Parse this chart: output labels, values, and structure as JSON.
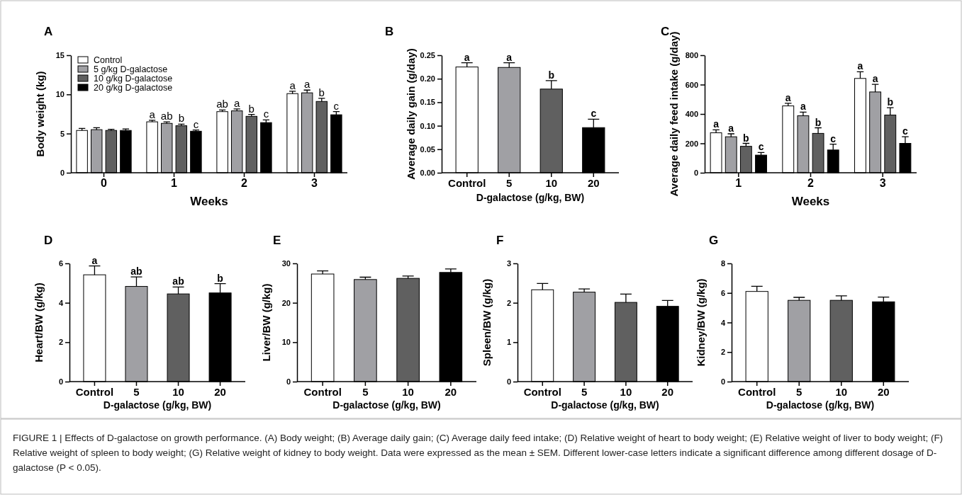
{
  "chart_data": [
    {
      "type": "bar",
      "title": "A",
      "xlabel": "Weeks",
      "ylabel": "Body weight (kg)",
      "categories": [
        "0",
        "1",
        "2",
        "3"
      ],
      "ylim": [
        0,
        15
      ],
      "yticks": [
        0,
        5,
        10,
        15
      ],
      "legend": "top left",
      "series": [
        {
          "name": "Control",
          "color": "#ffffff",
          "values": [
            5.4,
            6.5,
            7.8,
            10.1
          ],
          "errors": [
            0.25,
            0.2,
            0.2,
            0.3
          ],
          "value_labels": [
            null,
            "a",
            "ab",
            "a"
          ]
        },
        {
          "name": "5 g/kg D-galactose",
          "color": "#a0a0a4",
          "values": [
            5.5,
            6.3,
            7.9,
            10.2
          ],
          "errors": [
            0.25,
            0.2,
            0.25,
            0.35
          ],
          "value_labels": [
            null,
            "ab",
            "a",
            "a"
          ]
        },
        {
          "name": "10 g/kg D-galactose",
          "color": "#606060",
          "values": [
            5.4,
            6.0,
            7.2,
            9.1
          ],
          "errors": [
            0.15,
            0.2,
            0.25,
            0.4
          ],
          "value_labels": [
            null,
            "b",
            "b",
            "b"
          ]
        },
        {
          "name": "20 g/kg D-galactose",
          "color": "#000000",
          "values": [
            5.4,
            5.3,
            6.4,
            7.4
          ],
          "errors": [
            0.2,
            0.15,
            0.35,
            0.4
          ],
          "value_labels": [
            null,
            "c",
            "c",
            "c"
          ]
        }
      ]
    },
    {
      "type": "bar",
      "title": "B",
      "xlabel": "D-galactose (g/kg, BW)",
      "ylabel": "Average daily gain (g/day)",
      "categories": [
        "Control",
        "5",
        "10",
        "20"
      ],
      "ylim": [
        0,
        0.25
      ],
      "yticks": [
        {
          "value": 0,
          "label": "0.00"
        },
        {
          "value": 0.05,
          "label": "0.05"
        },
        {
          "value": 0.1,
          "label": "0.10"
        },
        {
          "value": 0.15,
          "label": "0.15"
        },
        {
          "value": 0.2,
          "label": "0.20"
        },
        {
          "value": 0.25,
          "label": "0.25"
        }
      ],
      "values": [
        0.225,
        0.224,
        0.178,
        0.096
      ],
      "colors": [
        "#ffffff",
        "#a0a0a4",
        "#606060",
        "#000000"
      ],
      "errors": [
        0.009,
        0.01,
        0.018,
        0.018
      ],
      "value_labels": [
        "a",
        "a",
        "b",
        "c"
      ]
    },
    {
      "type": "bar",
      "title": "C",
      "xlabel": "Weeks",
      "ylabel": "Average daily feed intake (g/day)",
      "categories": [
        "1",
        "2",
        "3"
      ],
      "ylim": [
        0,
        800
      ],
      "yticks": [
        0,
        200,
        400,
        600,
        800
      ],
      "series": [
        {
          "color": "#ffffff",
          "values": [
            272,
            455,
            642
          ],
          "errors": [
            20,
            18,
            45
          ],
          "value_labels": [
            "a",
            "a",
            "a"
          ]
        },
        {
          "color": "#a0a0a4",
          "values": [
            245,
            388,
            550
          ],
          "errors": [
            20,
            25,
            52
          ],
          "value_labels": [
            "a",
            "a",
            "a"
          ]
        },
        {
          "color": "#606060",
          "values": [
            180,
            268,
            393
          ],
          "errors": [
            20,
            38,
            50
          ],
          "value_labels": [
            "b",
            "b",
            "b"
          ]
        },
        {
          "color": "#000000",
          "values": [
            120,
            155,
            200
          ],
          "errors": [
            18,
            40,
            45
          ],
          "value_labels": [
            "c",
            "c",
            "c"
          ]
        }
      ]
    },
    {
      "type": "bar",
      "title": "D",
      "xlabel": "D-galactose (g/kg, BW)",
      "ylabel": "Heart/BW (g/kg)",
      "categories": [
        "Control",
        "5",
        "10",
        "20"
      ],
      "ylim": [
        0,
        6
      ],
      "yticks": [
        0,
        2,
        4,
        6
      ],
      "values": [
        5.42,
        4.83,
        4.45,
        4.5
      ],
      "colors": [
        "#ffffff",
        "#a0a0a4",
        "#606060",
        "#000000"
      ],
      "errors": [
        0.45,
        0.48,
        0.35,
        0.47
      ],
      "value_labels": [
        "a",
        "ab",
        "ab",
        "b"
      ]
    },
    {
      "type": "bar",
      "title": "E",
      "xlabel": "D-galactose (g/kg, BW)",
      "ylabel": "Liver/BW (g/kg)",
      "categories": [
        "Control",
        "5",
        "10",
        "20"
      ],
      "ylim": [
        0,
        30
      ],
      "yticks": [
        0,
        10,
        20,
        30
      ],
      "values": [
        27.3,
        25.9,
        26.2,
        27.7
      ],
      "colors": [
        "#ffffff",
        "#a0a0a4",
        "#606060",
        "#000000"
      ],
      "errors": [
        0.8,
        0.6,
        0.6,
        0.9
      ]
    },
    {
      "type": "bar",
      "title": "F",
      "xlabel": "D-galactose (g/kg, BW)",
      "ylabel": "Spleen/BW (g/kg)",
      "categories": [
        "Control",
        "5",
        "10",
        "20"
      ],
      "ylim": [
        0,
        3
      ],
      "yticks": [
        0,
        1,
        2,
        3
      ],
      "values": [
        2.33,
        2.27,
        2.01,
        1.91
      ],
      "colors": [
        "#ffffff",
        "#a0a0a4",
        "#606060",
        "#000000"
      ],
      "errors": [
        0.16,
        0.08,
        0.21,
        0.15
      ]
    },
    {
      "type": "bar",
      "title": "G",
      "xlabel": "D-galactose (g/kg, BW)",
      "ylabel": "Kidney/BW (g/kg)",
      "categories": [
        "Control",
        "5",
        "10",
        "20"
      ],
      "ylim": [
        0,
        8
      ],
      "yticks": [
        0,
        2,
        4,
        6,
        8
      ],
      "values": [
        6.1,
        5.5,
        5.5,
        5.4
      ],
      "colors": [
        "#ffffff",
        "#a0a0a4",
        "#606060",
        "#000000"
      ],
      "errors": [
        0.35,
        0.2,
        0.3,
        0.32
      ]
    },
    {
      "type": "other",
      "annotations": [
        "FIGURE 1 | Effects of D-galactose on growth performance. (A) Body weight; (B) Average daily gain; (C) Average daily feed intake; (D) Relative weight of heart to body weight; (E) Relative weight of liver to body weight; (F) Relative weight of spleen to body weight; (G) Relative weight of kidney to body weight. Data were expressed as the mean ± SEM. Different lower-case letters indicate a significant difference among different dosage of D-galactose (P < 0.05)."
      ]
    }
  ]
}
